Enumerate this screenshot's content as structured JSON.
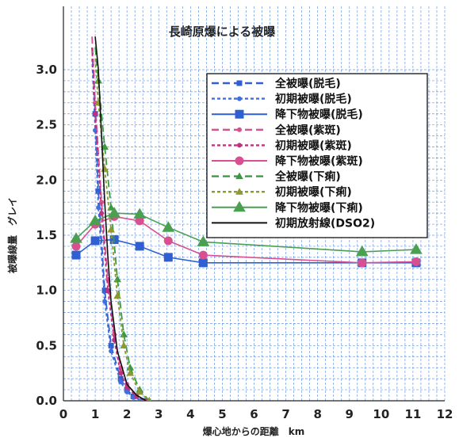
{
  "chart_data": {
    "type": "line",
    "title": "長崎原爆による被曝",
    "xlabel": "爆心地からの距離　km",
    "ylabel": "被曝線量　グレイ",
    "xlim": [
      0,
      12
    ],
    "ylim": [
      0,
      3.0
    ],
    "xticks": [
      "0",
      "1",
      "2",
      "3",
      "4",
      "5",
      "6",
      "7",
      "8",
      "9",
      "10",
      "11",
      "12"
    ],
    "yticks": [
      "0.0",
      "0.5",
      "1.0",
      "1.5",
      "2.0",
      "2.5",
      "3.0"
    ],
    "grid": true,
    "legend_position": "top-right",
    "series": [
      {
        "name": "全被曝(脱毛)",
        "color": "#2f5fd0",
        "dash": "long",
        "marker": "square-small",
        "x": [
          0.9,
          1.0,
          1.1,
          1.3,
          1.5,
          1.8,
          2.0,
          2.2,
          2.5
        ],
        "y": [
          3.2,
          2.6,
          1.9,
          1.0,
          0.5,
          0.2,
          0.1,
          0.04,
          0.0
        ]
      },
      {
        "name": "初期被曝(脱毛)",
        "color": "#3f6fe0",
        "dash": "short",
        "marker": "dot",
        "x": [
          0.9,
          1.0,
          1.1,
          1.3,
          1.5,
          1.8,
          2.0,
          2.2,
          2.5
        ],
        "y": [
          3.1,
          2.45,
          1.75,
          0.9,
          0.45,
          0.17,
          0.08,
          0.03,
          0.0
        ]
      },
      {
        "name": "降下物被曝(脱毛)",
        "color": "#2f5fd0",
        "dash": "solid",
        "marker": "square",
        "x": [
          0.4,
          1.0,
          1.6,
          2.4,
          3.3,
          4.4,
          9.4,
          11.1
        ],
        "y": [
          1.32,
          1.45,
          1.46,
          1.4,
          1.3,
          1.25,
          1.25,
          1.25
        ]
      },
      {
        "name": "全被曝(紫斑)",
        "color": "#d8508f",
        "dash": "long",
        "marker": "dot",
        "x": [
          0.9,
          1.0,
          1.2,
          1.4,
          1.6,
          1.8,
          2.0,
          2.3,
          2.6
        ],
        "y": [
          3.3,
          2.7,
          1.8,
          1.1,
          0.6,
          0.3,
          0.15,
          0.05,
          0.0
        ]
      },
      {
        "name": "初期被曝(紫斑)",
        "color": "#c03080",
        "dash": "short",
        "marker": "dot",
        "x": [
          0.9,
          1.0,
          1.2,
          1.4,
          1.6,
          1.8,
          2.0,
          2.3,
          2.6
        ],
        "y": [
          3.2,
          2.6,
          1.7,
          1.0,
          0.55,
          0.25,
          0.12,
          0.04,
          0.0
        ]
      },
      {
        "name": "降下物被曝(紫斑)",
        "color": "#d8508f",
        "dash": "solid",
        "marker": "circle",
        "x": [
          0.4,
          1.0,
          1.6,
          2.4,
          3.3,
          4.4,
          9.4,
          11.1
        ],
        "y": [
          1.4,
          1.6,
          1.67,
          1.63,
          1.45,
          1.32,
          1.25,
          1.26
        ]
      },
      {
        "name": "全被曝(下痢)",
        "color": "#3a9a40",
        "dash": "long",
        "marker": "triangle-small",
        "x": [
          1.0,
          1.1,
          1.3,
          1.5,
          1.7,
          1.9,
          2.1,
          2.4,
          2.7
        ],
        "y": [
          3.2,
          2.9,
          2.3,
          1.75,
          1.1,
          0.6,
          0.3,
          0.1,
          0.0
        ]
      },
      {
        "name": "初期被曝(下痢)",
        "color": "#8a9a30",
        "dash": "short",
        "marker": "triangle-small",
        "x": [
          1.0,
          1.1,
          1.3,
          1.5,
          1.7,
          1.9,
          2.1,
          2.4,
          2.7
        ],
        "y": [
          3.1,
          2.7,
          2.1,
          1.55,
          0.95,
          0.5,
          0.25,
          0.08,
          0.0
        ]
      },
      {
        "name": "降下物被曝(下痢)",
        "color": "#4aa050",
        "dash": "solid",
        "marker": "triangle",
        "x": [
          0.4,
          1.0,
          1.6,
          2.4,
          3.3,
          4.4,
          9.4,
          11.1
        ],
        "y": [
          1.47,
          1.63,
          1.7,
          1.69,
          1.57,
          1.44,
          1.35,
          1.37
        ]
      },
      {
        "name": "初期放射線(DSO2)",
        "color": "#111111",
        "dash": "solid",
        "marker": "none",
        "x": [
          1.0,
          1.1,
          1.2,
          1.3,
          1.4,
          1.5,
          1.7,
          2.0,
          2.3,
          2.6
        ],
        "y": [
          3.3,
          3.0,
          2.4,
          1.8,
          1.3,
          0.9,
          0.45,
          0.15,
          0.05,
          0.0
        ]
      }
    ]
  }
}
